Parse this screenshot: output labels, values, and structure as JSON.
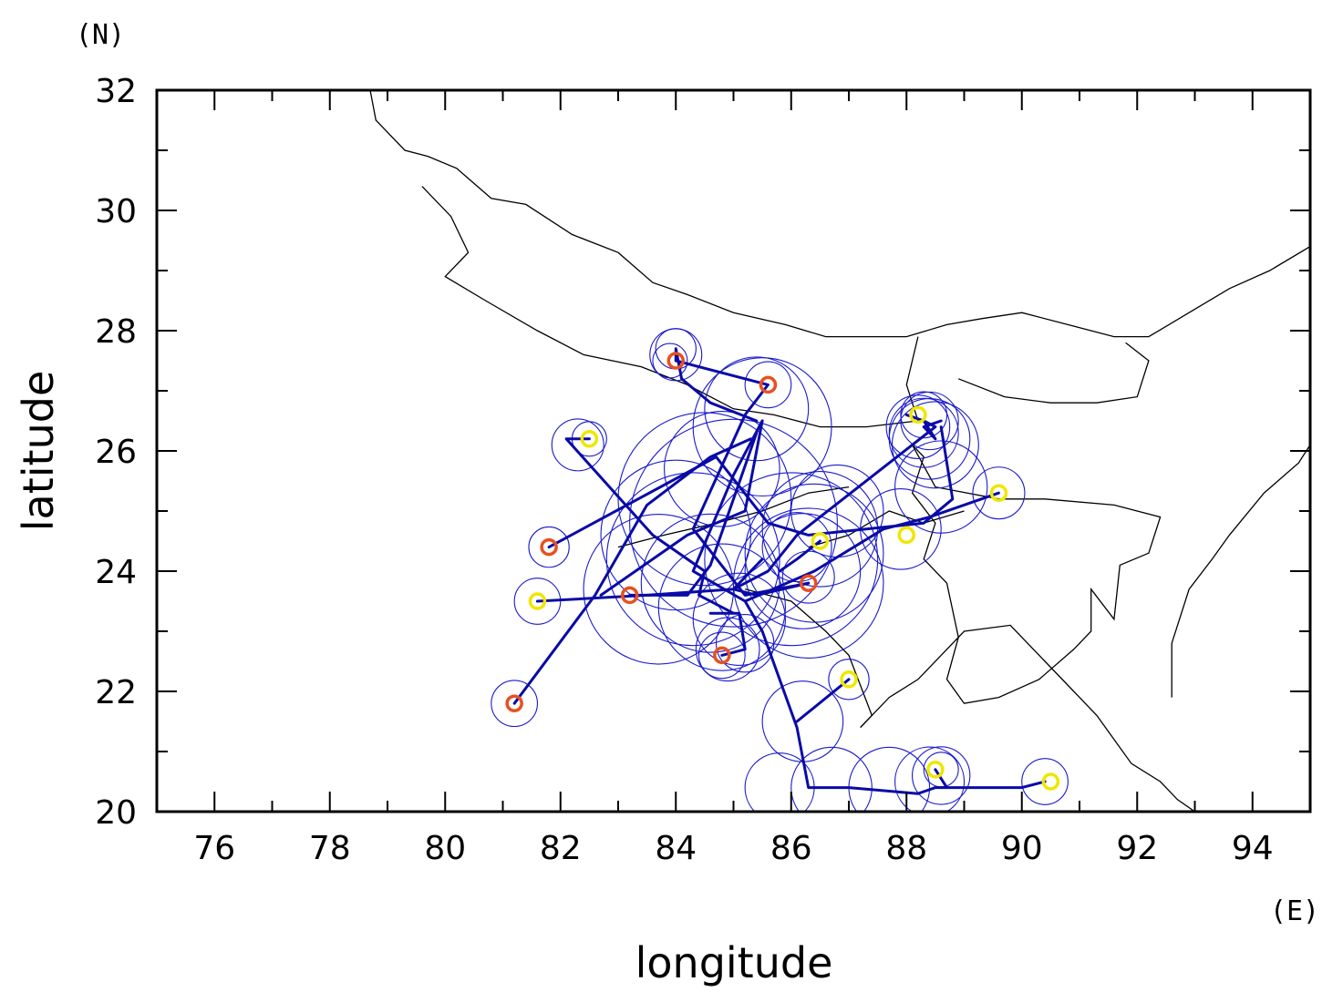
{
  "chart_data": {
    "type": "scatter",
    "xlabel": "longitude",
    "ylabel": "latitude",
    "x_unit": "(E)",
    "y_unit": "(N)",
    "xlim": [
      75,
      95
    ],
    "ylim": [
      20,
      32
    ],
    "x_ticks": [
      76,
      78,
      80,
      82,
      84,
      86,
      88,
      90,
      92,
      94
    ],
    "y_ticks": [
      20,
      22,
      24,
      26,
      28,
      30,
      32
    ],
    "colors": {
      "track": "#0a0aa8",
      "rings": "#1a1acc",
      "border": "#000000",
      "origin_red": "#e8501e",
      "origin_yellow": "#f0e600"
    },
    "borders": [
      [
        [
          78.7,
          32.0
        ],
        [
          78.8,
          31.5
        ],
        [
          79.3,
          31.0
        ],
        [
          79.7,
          30.9
        ],
        [
          80.2,
          30.7
        ],
        [
          80.8,
          30.2
        ],
        [
          81.4,
          30.1
        ],
        [
          82.2,
          29.6
        ],
        [
          83.0,
          29.3
        ],
        [
          83.6,
          28.8
        ],
        [
          84.2,
          28.6
        ],
        [
          85.0,
          28.3
        ],
        [
          85.9,
          28.1
        ],
        [
          86.6,
          27.9
        ],
        [
          87.3,
          27.9
        ],
        [
          88.0,
          27.9
        ],
        [
          88.7,
          28.1
        ],
        [
          89.3,
          28.2
        ],
        [
          90.0,
          28.3
        ],
        [
          90.8,
          28.1
        ],
        [
          91.6,
          27.9
        ],
        [
          92.2,
          27.9
        ],
        [
          92.9,
          28.3
        ],
        [
          93.6,
          28.7
        ],
        [
          94.3,
          29.0
        ],
        [
          95.0,
          29.4
        ]
      ],
      [
        [
          79.6,
          30.4
        ],
        [
          80.1,
          29.9
        ],
        [
          80.4,
          29.3
        ],
        [
          80.0,
          28.9
        ],
        [
          80.7,
          28.5
        ],
        [
          81.6,
          28.0
        ],
        [
          82.4,
          27.6
        ],
        [
          83.4,
          27.4
        ],
        [
          84.2,
          27.1
        ],
        [
          85.0,
          26.7
        ],
        [
          85.7,
          26.6
        ],
        [
          86.5,
          26.4
        ],
        [
          87.3,
          26.4
        ],
        [
          88.2,
          26.5
        ]
      ],
      [
        [
          88.2,
          26.5
        ],
        [
          88.0,
          27.1
        ],
        [
          88.2,
          27.9
        ]
      ],
      [
        [
          88.9,
          27.2
        ],
        [
          89.7,
          26.9
        ],
        [
          90.5,
          26.8
        ],
        [
          91.3,
          26.8
        ],
        [
          92.0,
          26.9
        ],
        [
          92.2,
          27.5
        ],
        [
          91.8,
          27.8
        ]
      ],
      [
        [
          88.1,
          26.1
        ],
        [
          88.5,
          25.4
        ],
        [
          89.6,
          25.2
        ],
        [
          90.4,
          25.2
        ],
        [
          91.6,
          25.1
        ],
        [
          92.4,
          24.9
        ],
        [
          92.2,
          24.3
        ],
        [
          91.7,
          24.1
        ],
        [
          91.6,
          23.2
        ],
        [
          91.2,
          23.7
        ],
        [
          91.2,
          23.0
        ],
        [
          90.9,
          22.7
        ],
        [
          90.3,
          22.2
        ],
        [
          89.6,
          21.9
        ],
        [
          89.0,
          21.8
        ],
        [
          88.7,
          22.2
        ],
        [
          88.9,
          22.9
        ],
        [
          88.7,
          23.8
        ],
        [
          88.3,
          24.2
        ],
        [
          88.5,
          24.8
        ],
        [
          88.1,
          25.3
        ],
        [
          88.3,
          25.9
        ],
        [
          88.1,
          26.1
        ]
      ],
      [
        [
          92.6,
          21.9
        ],
        [
          92.6,
          22.8
        ],
        [
          92.9,
          23.7
        ],
        [
          93.3,
          24.2
        ],
        [
          93.6,
          24.6
        ],
        [
          94.2,
          25.3
        ],
        [
          94.8,
          25.8
        ],
        [
          95.0,
          26.1
        ]
      ],
      [
        [
          87.2,
          21.4
        ],
        [
          87.7,
          21.9
        ],
        [
          88.2,
          22.2
        ],
        [
          88.6,
          22.6
        ],
        [
          89.0,
          23.0
        ],
        [
          89.8,
          23.1
        ],
        [
          90.4,
          22.5
        ],
        [
          90.9,
          22.0
        ],
        [
          91.3,
          21.6
        ],
        [
          91.6,
          21.2
        ],
        [
          91.9,
          20.8
        ],
        [
          92.4,
          20.5
        ],
        [
          92.7,
          20.2
        ],
        [
          93.0,
          20.0
        ]
      ],
      [
        [
          85.2,
          23.7
        ],
        [
          86.0,
          23.5
        ],
        [
          86.6,
          23.0
        ],
        [
          87.0,
          22.6
        ],
        [
          87.2,
          22.1
        ],
        [
          87.4,
          21.6
        ],
        [
          87.2,
          21.4
        ]
      ],
      [
        [
          86.3,
          24.4
        ],
        [
          87.0,
          24.6
        ],
        [
          87.7,
          25.0
        ],
        [
          88.3,
          24.8
        ],
        [
          89.0,
          25.0
        ]
      ],
      [
        [
          83.0,
          24.4
        ],
        [
          83.8,
          24.6
        ],
        [
          84.7,
          24.8
        ],
        [
          85.5,
          25.0
        ],
        [
          86.3,
          25.3
        ],
        [
          87.0,
          25.4
        ]
      ]
    ],
    "rings": [
      {
        "lon": 84.0,
        "lat": 27.6,
        "r": 0.45
      },
      {
        "lon": 84.0,
        "lat": 27.7,
        "r": 0.35
      },
      {
        "lon": 83.9,
        "lat": 27.5,
        "r": 0.3
      },
      {
        "lon": 85.6,
        "lat": 27.1,
        "r": 0.4
      },
      {
        "lon": 85.4,
        "lat": 26.7,
        "r": 0.9
      },
      {
        "lon": 85.5,
        "lat": 26.4,
        "r": 1.2
      },
      {
        "lon": 82.3,
        "lat": 26.1,
        "r": 0.45
      },
      {
        "lon": 82.5,
        "lat": 26.2,
        "r": 0.3
      },
      {
        "lon": 84.8,
        "lat": 25.7,
        "r": 1.0
      },
      {
        "lon": 84.5,
        "lat": 25.2,
        "r": 1.5
      },
      {
        "lon": 85.0,
        "lat": 24.8,
        "r": 1.8
      },
      {
        "lon": 84.3,
        "lat": 24.2,
        "r": 1.5
      },
      {
        "lon": 84.6,
        "lat": 23.8,
        "r": 1.2
      },
      {
        "lon": 84.8,
        "lat": 23.4,
        "r": 1.1
      },
      {
        "lon": 83.7,
        "lat": 23.7,
        "r": 1.3
      },
      {
        "lon": 84.0,
        "lat": 24.6,
        "r": 1.3
      },
      {
        "lon": 85.1,
        "lat": 23.2,
        "r": 0.8
      },
      {
        "lon": 84.9,
        "lat": 22.7,
        "r": 0.55
      },
      {
        "lon": 84.8,
        "lat": 22.6,
        "r": 0.4
      },
      {
        "lon": 85.2,
        "lat": 22.8,
        "r": 0.5
      },
      {
        "lon": 86.2,
        "lat": 24.0,
        "r": 1.0
      },
      {
        "lon": 86.4,
        "lat": 24.3,
        "r": 1.2
      },
      {
        "lon": 86.3,
        "lat": 23.8,
        "r": 1.3
      },
      {
        "lon": 86.5,
        "lat": 24.7,
        "r": 1.0
      },
      {
        "lon": 86.8,
        "lat": 25.0,
        "r": 0.8
      },
      {
        "lon": 86.1,
        "lat": 24.4,
        "r": 0.6
      },
      {
        "lon": 86.3,
        "lat": 23.9,
        "r": 0.45
      },
      {
        "lon": 86.0,
        "lat": 24.2,
        "r": 1.5
      },
      {
        "lon": 88.3,
        "lat": 26.3,
        "r": 0.6
      },
      {
        "lon": 88.4,
        "lat": 26.2,
        "r": 0.7
      },
      {
        "lon": 88.4,
        "lat": 26.5,
        "r": 0.5
      },
      {
        "lon": 88.3,
        "lat": 26.6,
        "r": 0.4
      },
      {
        "lon": 88.5,
        "lat": 26.1,
        "r": 0.75
      },
      {
        "lon": 88.2,
        "lat": 26.4,
        "r": 0.55
      },
      {
        "lon": 88.6,
        "lat": 25.4,
        "r": 0.8
      },
      {
        "lon": 87.9,
        "lat": 24.7,
        "r": 0.7
      },
      {
        "lon": 89.6,
        "lat": 25.3,
        "r": 0.45
      },
      {
        "lon": 81.8,
        "lat": 24.4,
        "r": 0.35
      },
      {
        "lon": 81.6,
        "lat": 23.5,
        "r": 0.4
      },
      {
        "lon": 81.2,
        "lat": 21.8,
        "r": 0.4
      },
      {
        "lon": 86.2,
        "lat": 21.5,
        "r": 0.7
      },
      {
        "lon": 87.0,
        "lat": 22.2,
        "r": 0.35
      },
      {
        "lon": 85.8,
        "lat": 20.4,
        "r": 0.6
      },
      {
        "lon": 86.7,
        "lat": 20.4,
        "r": 0.7
      },
      {
        "lon": 87.7,
        "lat": 20.4,
        "r": 0.7
      },
      {
        "lon": 88.4,
        "lat": 20.5,
        "r": 0.6
      },
      {
        "lon": 88.6,
        "lat": 20.6,
        "r": 0.5
      },
      {
        "lon": 88.6,
        "lat": 20.7,
        "r": 0.3
      },
      {
        "lon": 90.4,
        "lat": 20.5,
        "r": 0.4
      }
    ],
    "tracks": [
      [
        [
          84.0,
          27.5
        ],
        [
          84.0,
          27.7
        ],
        [
          84.1,
          27.2
        ],
        [
          84.6,
          26.8
        ],
        [
          85.4,
          26.5
        ]
      ],
      [
        [
          84.0,
          27.5
        ],
        [
          85.6,
          27.1
        ],
        [
          85.2,
          26.6
        ],
        [
          84.3,
          24.7
        ],
        [
          85.2,
          23.6
        ],
        [
          86.3,
          23.8
        ]
      ],
      [
        [
          82.5,
          26.2
        ],
        [
          82.1,
          26.2
        ],
        [
          83.6,
          24.6
        ],
        [
          84.5,
          24.0
        ],
        [
          84.4,
          23.6
        ],
        [
          85.0,
          23.3
        ]
      ],
      [
        [
          85.5,
          26.5
        ],
        [
          85.0,
          25.6
        ],
        [
          84.3,
          24.0
        ],
        [
          85.2,
          23.5
        ],
        [
          86.4,
          24.0
        ],
        [
          87.6,
          24.7
        ],
        [
          88.4,
          24.9
        ],
        [
          89.6,
          25.3
        ]
      ],
      [
        [
          85.4,
          26.3
        ],
        [
          84.6,
          24.1
        ],
        [
          84.2,
          23.6
        ],
        [
          83.2,
          23.6
        ]
      ],
      [
        [
          85.5,
          26.5
        ],
        [
          85.2,
          25.0
        ],
        [
          84.2,
          24.6
        ],
        [
          82.7,
          23.6
        ]
      ],
      [
        [
          81.8,
          24.4
        ],
        [
          84.7,
          25.9
        ],
        [
          85.6,
          24.8
        ],
        [
          86.3,
          24.6
        ],
        [
          87.3,
          24.7
        ],
        [
          88.3,
          24.8
        ],
        [
          88.8,
          25.2
        ],
        [
          88.6,
          26.4
        ]
      ],
      [
        [
          81.6,
          23.5
        ],
        [
          83.5,
          23.6
        ],
        [
          85.0,
          23.7
        ],
        [
          85.6,
          24.0
        ],
        [
          86.1,
          24.6
        ],
        [
          86.5,
          24.9
        ],
        [
          88.5,
          26.4
        ],
        [
          88.3,
          26.5
        ],
        [
          88.0,
          26.6
        ]
      ],
      [
        [
          81.2,
          21.8
        ],
        [
          82.6,
          23.6
        ],
        [
          83.5,
          25.1
        ],
        [
          84.6,
          25.9
        ],
        [
          85.3,
          26.2
        ]
      ],
      [
        [
          84.8,
          22.6
        ],
        [
          85.2,
          22.7
        ],
        [
          85.1,
          23.3
        ],
        [
          84.6,
          23.3
        ]
      ],
      [
        [
          86.3,
          23.8
        ],
        [
          85.4,
          23.6
        ],
        [
          85.0,
          23.7
        ],
        [
          85.5,
          24.2
        ]
      ],
      [
        [
          86.5,
          24.5
        ],
        [
          86.1,
          24.2
        ],
        [
          85.8,
          24.0
        ]
      ],
      [
        [
          85.2,
          23.5
        ],
        [
          85.5,
          23.0
        ],
        [
          86.1,
          21.4
        ],
        [
          86.3,
          20.4
        ],
        [
          87.0,
          20.4
        ],
        [
          88.2,
          20.3
        ],
        [
          88.5,
          20.4
        ],
        [
          90.0,
          20.4
        ],
        [
          90.4,
          20.5
        ]
      ],
      [
        [
          87.0,
          22.2
        ],
        [
          86.1,
          21.5
        ]
      ],
      [
        [
          88.5,
          20.7
        ],
        [
          88.7,
          20.4
        ]
      ],
      [
        [
          88.3,
          26.5
        ],
        [
          88.5,
          26.2
        ],
        [
          88.3,
          26.4
        ],
        [
          88.6,
          26.5
        ]
      ]
    ],
    "origins": [
      {
        "lon": 84.0,
        "lat": 27.5,
        "color": "red"
      },
      {
        "lon": 85.6,
        "lat": 27.1,
        "color": "red"
      },
      {
        "lon": 82.5,
        "lat": 26.2,
        "color": "yellow"
      },
      {
        "lon": 81.8,
        "lat": 24.4,
        "color": "red"
      },
      {
        "lon": 81.6,
        "lat": 23.5,
        "color": "yellow"
      },
      {
        "lon": 83.2,
        "lat": 23.6,
        "color": "red"
      },
      {
        "lon": 84.8,
        "lat": 22.6,
        "color": "red"
      },
      {
        "lon": 86.3,
        "lat": 23.8,
        "color": "red"
      },
      {
        "lon": 86.5,
        "lat": 24.5,
        "color": "yellow"
      },
      {
        "lon": 81.2,
        "lat": 21.8,
        "color": "red"
      },
      {
        "lon": 87.0,
        "lat": 22.2,
        "color": "yellow"
      },
      {
        "lon": 88.0,
        "lat": 24.6,
        "color": "yellow"
      },
      {
        "lon": 89.6,
        "lat": 25.3,
        "color": "yellow"
      },
      {
        "lon": 88.2,
        "lat": 26.6,
        "color": "yellow"
      },
      {
        "lon": 88.5,
        "lat": 20.7,
        "color": "yellow"
      },
      {
        "lon": 90.5,
        "lat": 20.5,
        "color": "yellow"
      }
    ]
  }
}
